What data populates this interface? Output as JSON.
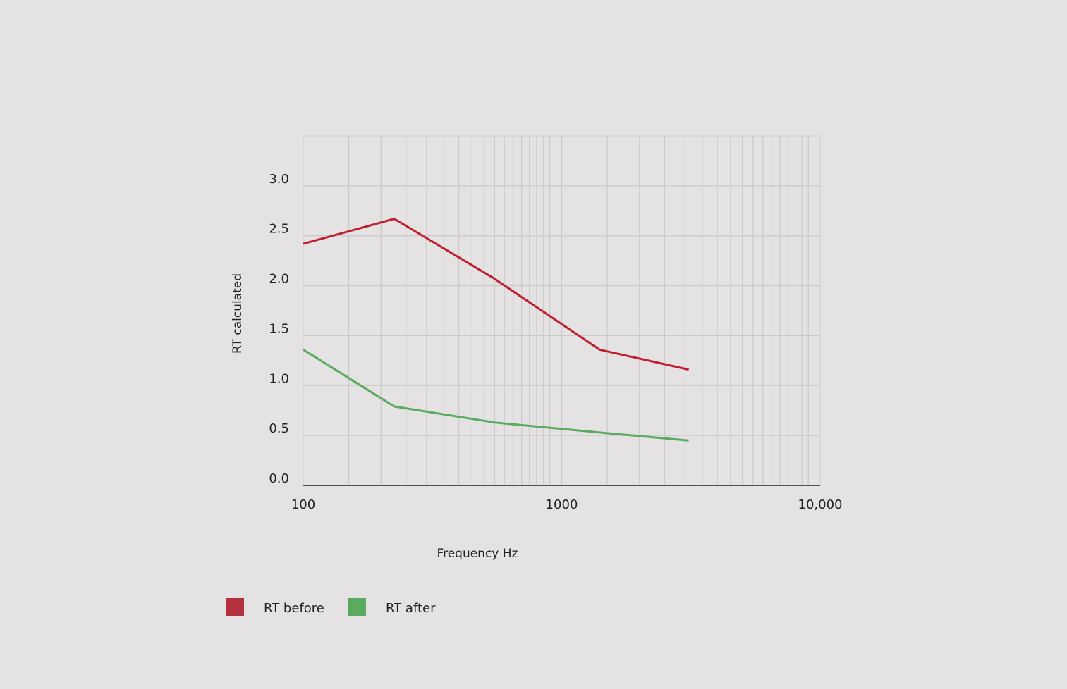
{
  "chart_data": {
    "type": "line",
    "title": "",
    "xlabel": "Frequency Hz",
    "ylabel": "RT calculated",
    "x_scale": "log",
    "xlim": [
      100,
      10000
    ],
    "ylim": [
      0,
      3.5
    ],
    "x_ticks": [
      100,
      1000,
      10000
    ],
    "x_tick_labels": [
      "100",
      "1000",
      "10,000"
    ],
    "y_ticks": [
      0,
      0.5,
      1,
      1.5,
      2,
      2.5,
      3
    ],
    "y_tick_labels": [
      "0.0",
      "0.5",
      "1.0",
      "1.5",
      "2.0",
      "2.5",
      "3.0"
    ],
    "grid": true,
    "legend_position": "bottom-left",
    "series": [
      {
        "name": "RT before",
        "color": "#c0202e",
        "legend_color": "#b3303e",
        "x": [
          100,
          225,
          550,
          1400,
          3100
        ],
        "y": [
          2.42,
          2.67,
          2.07,
          1.36,
          1.16
        ]
      },
      {
        "name": "RT after",
        "color": "#5aab60",
        "legend_color": "#5aab60",
        "x": [
          100,
          225,
          550,
          1400,
          3100
        ],
        "y": [
          1.36,
          0.79,
          0.63,
          0.53,
          0.45
        ]
      }
    ]
  }
}
